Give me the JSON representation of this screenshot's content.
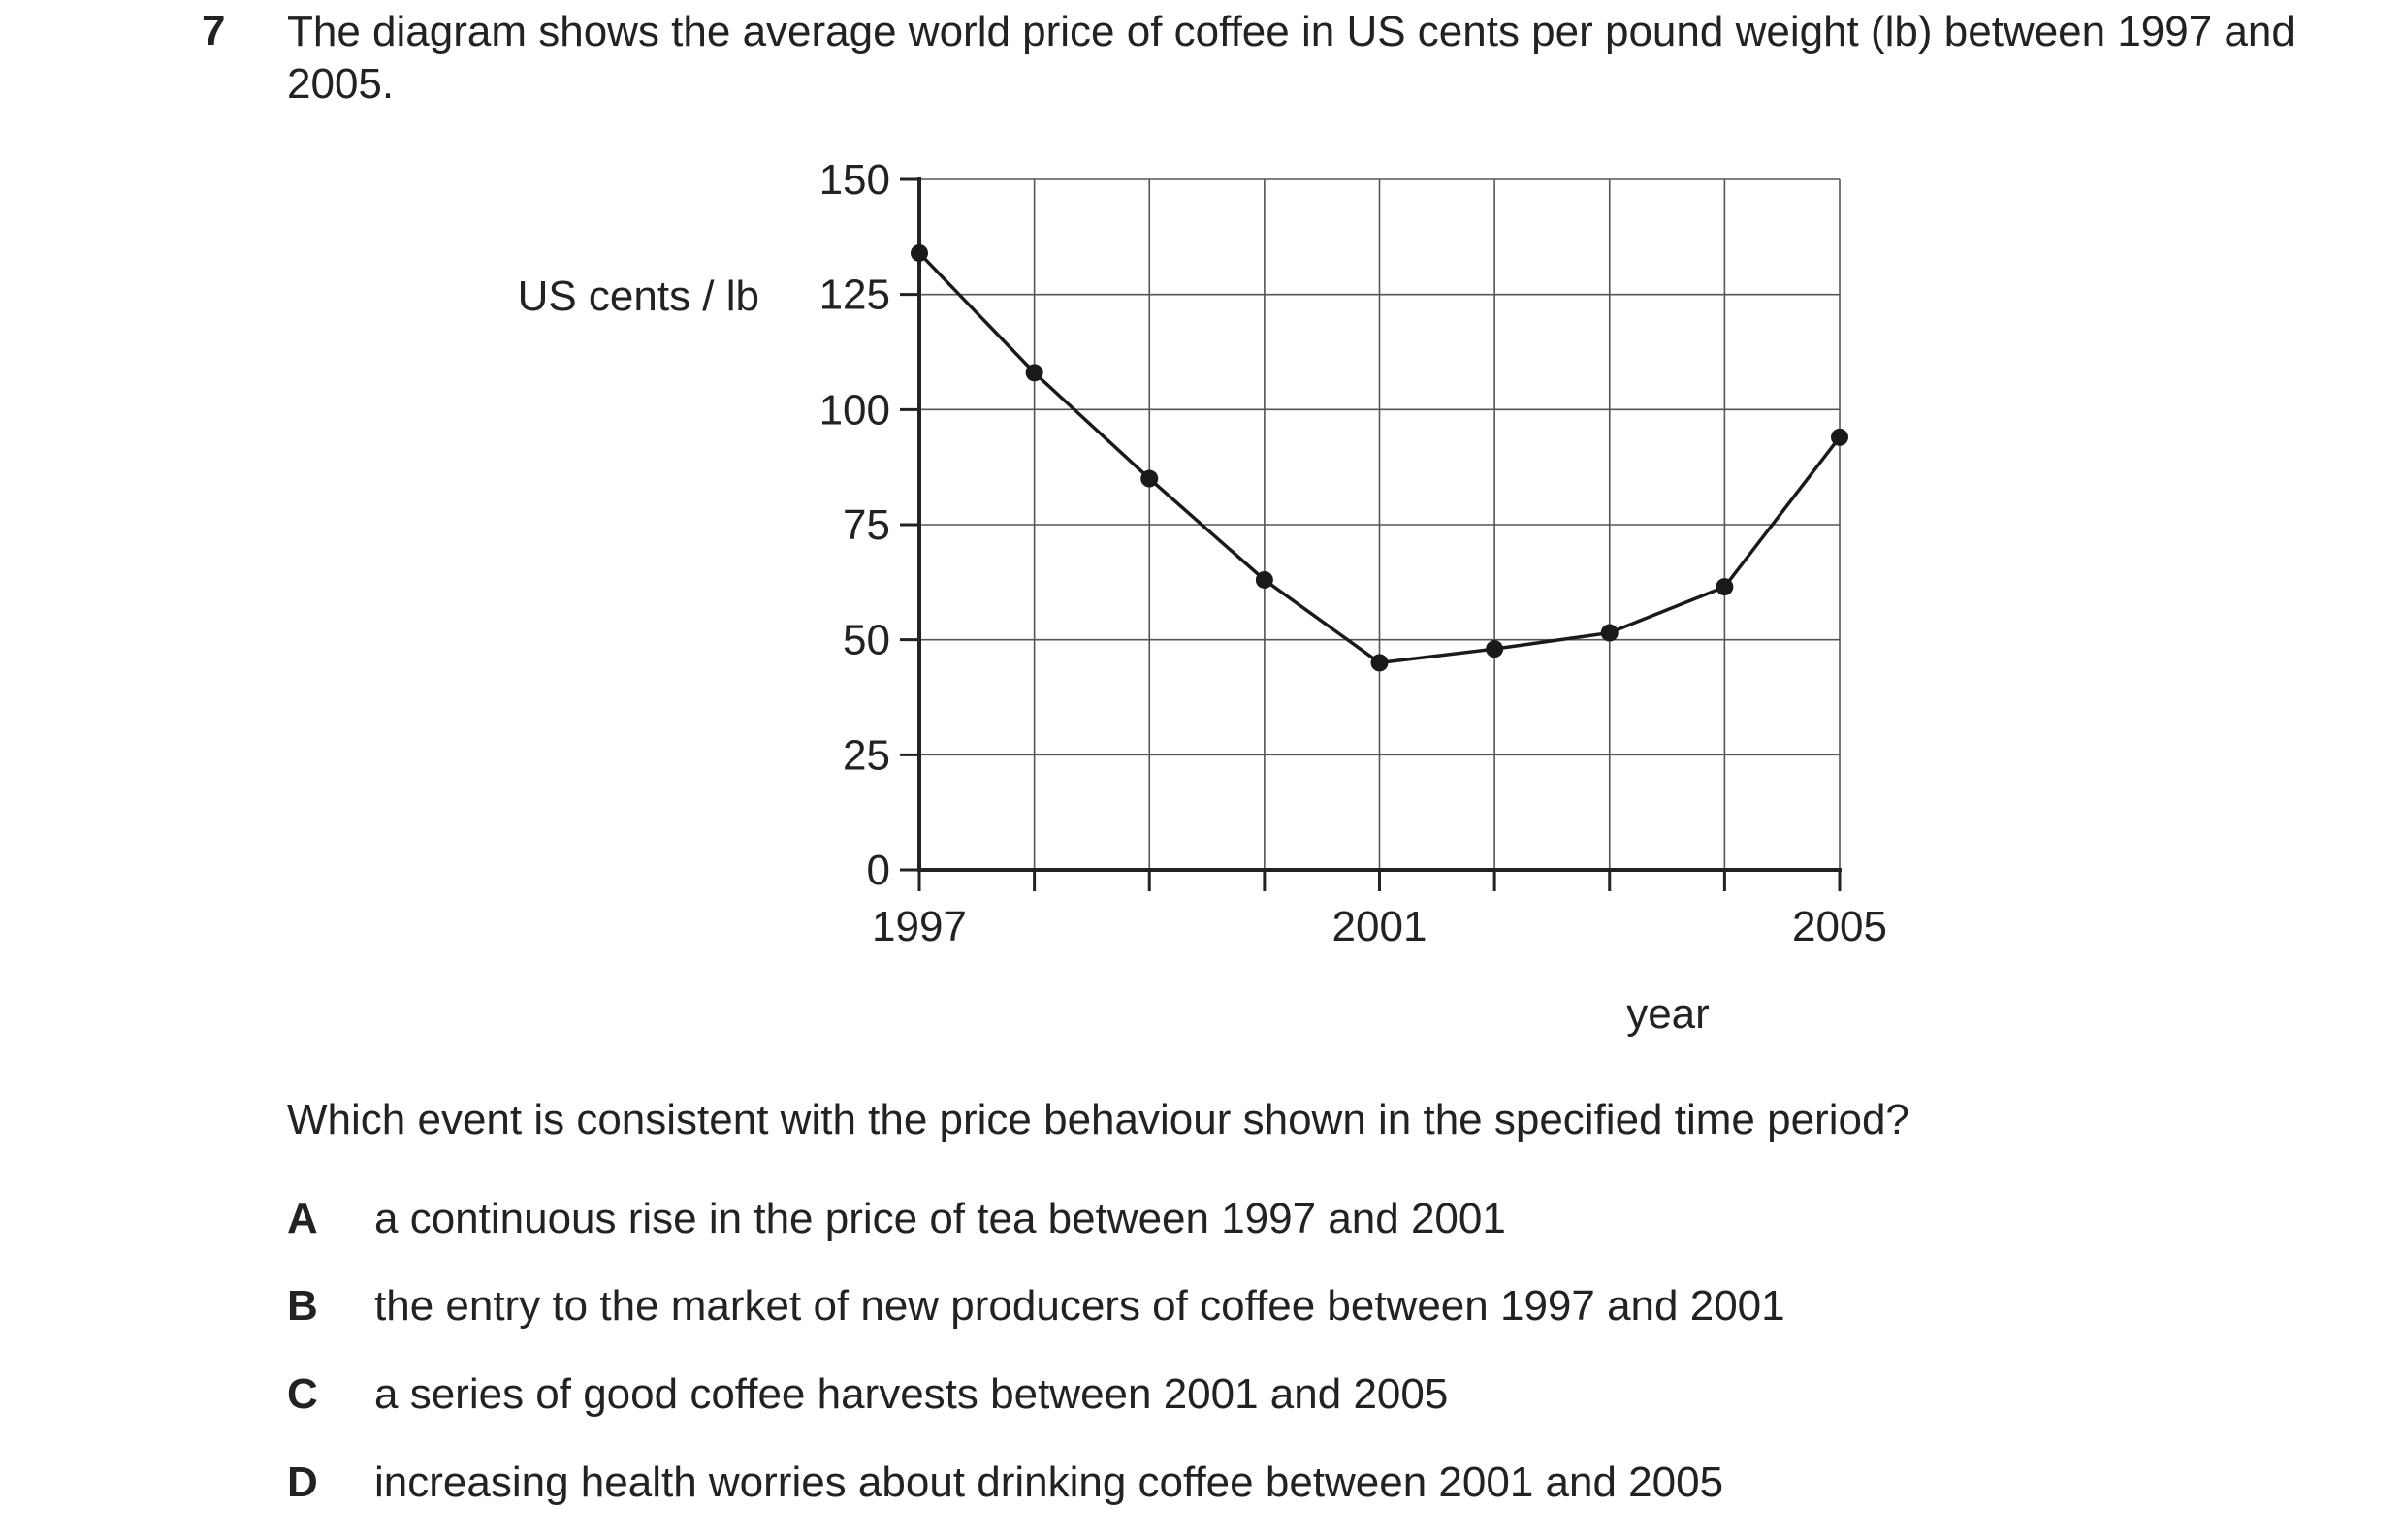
{
  "question": {
    "number": "7",
    "stem": "The diagram shows the average world price of coffee in US cents per pound weight (lb) between 1997 and 2005.",
    "prompt": "Which event is consistent with the price behaviour shown in the specified time period?",
    "options": [
      {
        "letter": "A",
        "text": "a continuous rise in the price of tea between 1997 and 2001"
      },
      {
        "letter": "B",
        "text": "the entry to the market of new producers of coffee between 1997 and 2001"
      },
      {
        "letter": "C",
        "text": "a series of good coffee harvests between 2001 and 2005"
      },
      {
        "letter": "D",
        "text": "increasing health worries about drinking coffee between 2001 and 2005"
      }
    ]
  },
  "chart_data": {
    "type": "line",
    "title": "",
    "xlabel": "year",
    "ylabel": "US cents / lb",
    "x": [
      1997,
      1998,
      1999,
      2000,
      2001,
      2002,
      2003,
      2004,
      2005
    ],
    "series": [
      {
        "values": [
          134,
          108,
          85,
          63,
          45,
          48,
          51.5,
          61.5,
          94
        ]
      }
    ],
    "xlim": [
      1997,
      2005
    ],
    "ylim": [
      0,
      150
    ],
    "yticks": [
      "0",
      "25",
      "50",
      "75",
      "100",
      "125",
      "150"
    ],
    "xtick_labels": [
      "1997",
      "2001",
      "2005"
    ],
    "grid": true,
    "legend": "none"
  }
}
